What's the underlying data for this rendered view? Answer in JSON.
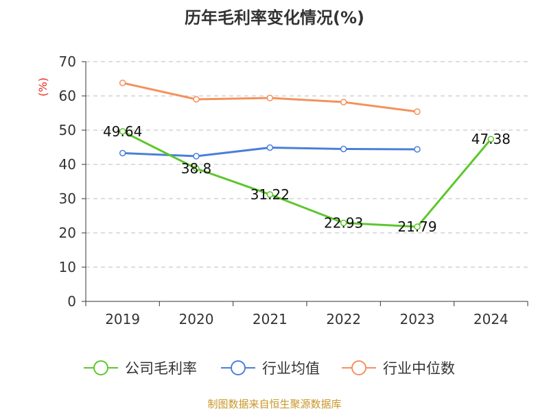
{
  "colors": {
    "company": "#5cc72a",
    "industry_avg": "#4a7fd8",
    "industry_median": "#f4915c",
    "grid": "#bbbbbb",
    "axis": "#333333",
    "unit": "#e8261c",
    "source": "#c8962b"
  },
  "chart_data": {
    "type": "line",
    "title": "历年毛利率变化情况(%)",
    "ylabel": "(%)",
    "xlabel": "",
    "categories": [
      "2019",
      "2020",
      "2021",
      "2022",
      "2023",
      "2024"
    ],
    "ylim": [
      0,
      70
    ],
    "yticks": [
      0,
      10,
      20,
      30,
      40,
      50,
      60,
      70
    ],
    "ytick_labels": [
      "0",
      "10",
      "20",
      "30",
      "40",
      "50",
      "60",
      "70"
    ],
    "grid": true,
    "legend_position": "bottom",
    "series": [
      {
        "name": "公司毛利率",
        "color_key": "company",
        "values": [
          49.64,
          38.8,
          31.22,
          22.93,
          21.79,
          47.38
        ],
        "data_labels": [
          "49.64",
          "38.8",
          "31.22",
          "22.93",
          "21.79",
          "47.38"
        ]
      },
      {
        "name": "行业均值",
        "color_key": "industry_avg",
        "values": [
          43.3,
          42.4,
          44.9,
          44.5,
          44.4,
          null
        ]
      },
      {
        "name": "行业中位数",
        "color_key": "industry_median",
        "values": [
          63.8,
          59.0,
          59.4,
          58.2,
          55.4,
          null
        ]
      }
    ]
  },
  "footer": {
    "source": "制图数据来自恒生聚源数据库"
  }
}
